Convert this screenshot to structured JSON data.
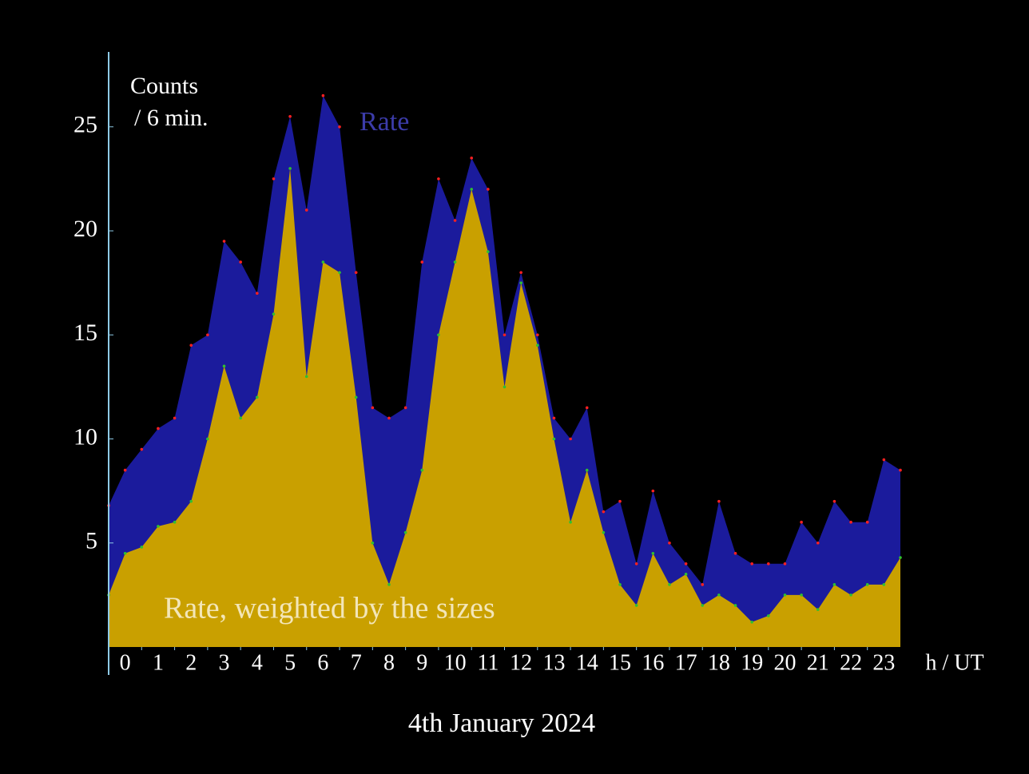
{
  "chart_data": {
    "type": "area",
    "title": "4th January 2024",
    "y_label_lines": [
      "Counts",
      "/ 6 min."
    ],
    "x_label": "h / UT",
    "x": [
      0,
      0.5,
      1,
      1.5,
      2,
      2.5,
      3,
      3.5,
      4,
      4.5,
      5,
      5.5,
      6,
      6.5,
      7,
      7.5,
      8,
      8.5,
      9,
      9.5,
      10,
      10.5,
      11,
      11.5,
      12,
      12.5,
      13,
      13.5,
      14,
      14.5,
      15,
      15.5,
      16,
      16.5,
      17,
      17.5,
      18,
      18.5,
      19,
      19.5,
      20,
      20.5,
      21,
      21.5,
      22,
      22.5,
      23,
      23.5,
      24
    ],
    "series": [
      {
        "name": "Rate",
        "color": "#1b1b9c",
        "label_color": "#3c3caa",
        "values": [
          6.8,
          8.5,
          9.5,
          10.5,
          11,
          14.5,
          15,
          19.5,
          18.5,
          17,
          22.5,
          25.5,
          21,
          26.5,
          25,
          18,
          11.5,
          11,
          11.5,
          18.5,
          22.5,
          20.5,
          23.5,
          22,
          15,
          18,
          15,
          11,
          10,
          11.5,
          6.5,
          7,
          4,
          7.5,
          5,
          4,
          3,
          7,
          4.5,
          4,
          4,
          4,
          6,
          5,
          7,
          6,
          6,
          9,
          8.5
        ]
      },
      {
        "name": "Rate, weighted by the sizes",
        "color": "#c9a000",
        "label_color": "#f3e6b8",
        "values": [
          2.5,
          4.5,
          4.8,
          5.8,
          6,
          7,
          10,
          13.5,
          11,
          12,
          16,
          23,
          13,
          18.5,
          18,
          12,
          5,
          3,
          5.5,
          8.5,
          15,
          18.5,
          22,
          19,
          12.5,
          17.5,
          14.5,
          10,
          6,
          8.5,
          5.5,
          3,
          2,
          4.5,
          3,
          3.5,
          2,
          2.5,
          2,
          1.2,
          1.5,
          2.5,
          2.5,
          1.8,
          3,
          2.5,
          3,
          3,
          4.3
        ]
      }
    ],
    "xlim": [
      0,
      24
    ],
    "xticks": [
      0,
      1,
      2,
      3,
      4,
      5,
      6,
      7,
      8,
      9,
      10,
      11,
      12,
      13,
      14,
      15,
      16,
      17,
      18,
      19,
      20,
      21,
      22,
      23
    ],
    "ylim": [
      0,
      28.6
    ],
    "yticks": [
      5,
      10,
      15,
      20,
      25
    ],
    "axis_color": "#8ecae6"
  }
}
